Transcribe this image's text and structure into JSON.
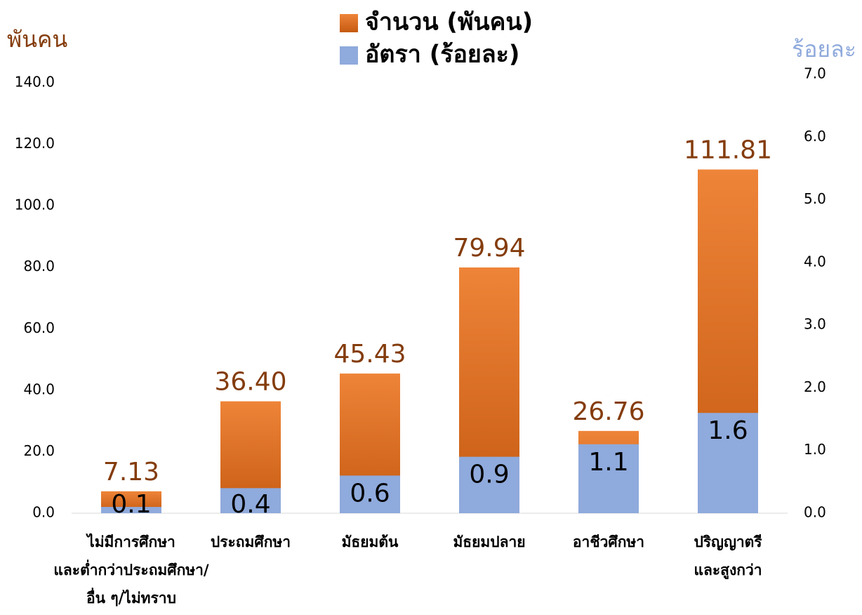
{
  "chart_data": {
    "type": "bar",
    "y_label": "พันคน",
    "y2_label": "ร้อยละ",
    "categories": [
      "ไม่มีการศึกษา\nและต่ำกว่าประถมศึกษา/\nอื่น ๆ/ไม่ทราบ",
      "ประถมศึกษา",
      "มัธยมต้น",
      "มัธยมปลาย",
      "อาชีวศึกษา",
      "ปริญญาตรี\nและสูงกว่า"
    ],
    "series": [
      {
        "name": "จำนวน (พันคน)",
        "color": "#ed7d31",
        "values": [
          7.13,
          36.4,
          45.43,
          79.94,
          26.76,
          111.81
        ],
        "value_labels": [
          "7.13",
          "36.40",
          "45.43",
          "79.94",
          "26.76",
          "111.81"
        ]
      },
      {
        "name": "อัตรา (ร้อยละ)",
        "color": "#8faadc",
        "axis": "y2",
        "values": [
          0.1,
          0.4,
          0.6,
          0.9,
          1.1,
          1.6
        ]
      }
    ],
    "ylim": [
      0,
      140
    ],
    "yticks": [
      {
        "value": 0,
        "label": "0.0"
      },
      {
        "value": 20,
        "label": "20.0"
      },
      {
        "value": 40,
        "label": "40.0"
      },
      {
        "value": 60,
        "label": "60.0"
      },
      {
        "value": 80,
        "label": "80.0"
      },
      {
        "value": 100,
        "label": "100.0"
      },
      {
        "value": 120,
        "label": "120.0"
      },
      {
        "value": 140,
        "label": "140.0"
      }
    ],
    "y2lim": [
      0,
      7
    ],
    "y2ticks": [
      {
        "value": 0,
        "label": "0.0"
      },
      {
        "value": 1,
        "label": "1.0"
      },
      {
        "value": 2,
        "label": "2.0"
      },
      {
        "value": 3,
        "label": "3.0"
      },
      {
        "value": 4,
        "label": "4.0"
      },
      {
        "value": 5,
        "label": "5.0"
      },
      {
        "value": 6,
        "label": "6.0"
      },
      {
        "value": 7,
        "label": "7.0"
      }
    ],
    "grid": false
  }
}
